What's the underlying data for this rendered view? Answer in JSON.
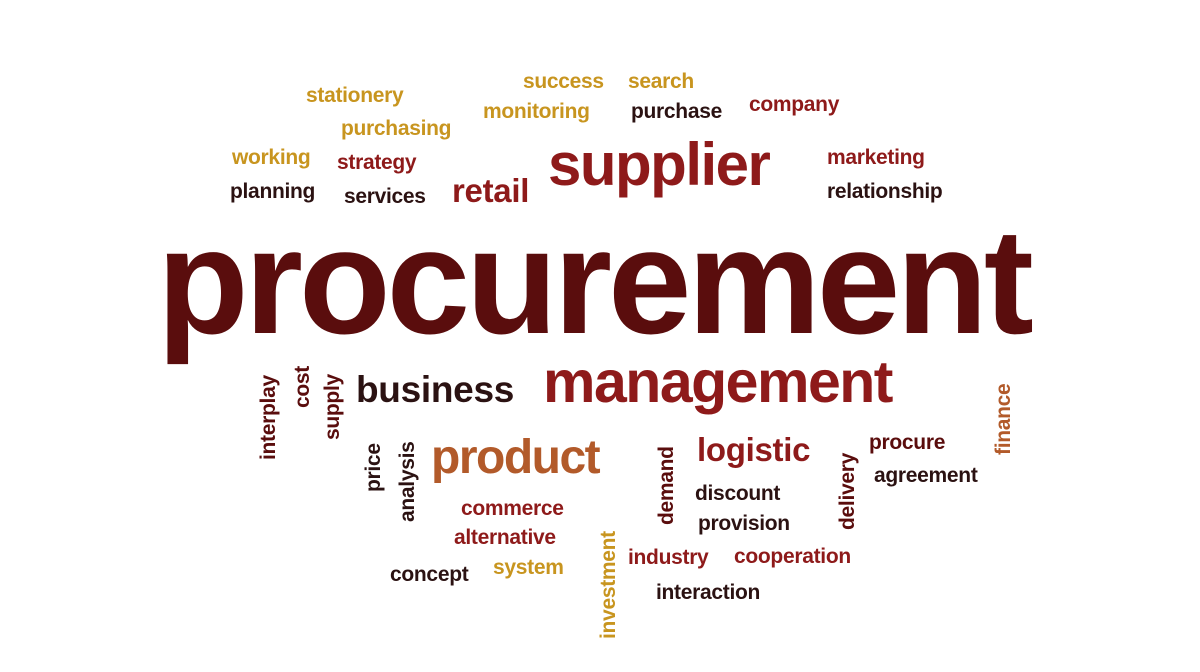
{
  "palette": {
    "gold": "#c8951f",
    "red": "#8e1a1a",
    "maroon": "#5a0d0d",
    "dark": "#2b1212",
    "orange": "#b25a2a"
  },
  "words": [
    {
      "id": "procurement",
      "text": "procurement",
      "color": "maroon",
      "orientation": "horizontal"
    },
    {
      "id": "supplier",
      "text": "supplier",
      "color": "red",
      "orientation": "horizontal"
    },
    {
      "id": "management",
      "text": "management",
      "color": "red",
      "orientation": "horizontal"
    },
    {
      "id": "product",
      "text": "product",
      "color": "orange",
      "orientation": "horizontal"
    },
    {
      "id": "business",
      "text": "business",
      "color": "dark",
      "orientation": "horizontal"
    },
    {
      "id": "logistic",
      "text": "logistic",
      "color": "red",
      "orientation": "horizontal"
    },
    {
      "id": "retail",
      "text": "retail",
      "color": "red",
      "orientation": "horizontal"
    },
    {
      "id": "success",
      "text": "success",
      "color": "gold",
      "orientation": "horizontal"
    },
    {
      "id": "search",
      "text": "search",
      "color": "gold",
      "orientation": "horizontal"
    },
    {
      "id": "stationery",
      "text": "stationery",
      "color": "gold",
      "orientation": "horizontal"
    },
    {
      "id": "monitoring",
      "text": "monitoring",
      "color": "gold",
      "orientation": "horizontal"
    },
    {
      "id": "purchase",
      "text": "purchase",
      "color": "dark",
      "orientation": "horizontal"
    },
    {
      "id": "company",
      "text": "company",
      "color": "red",
      "orientation": "horizontal"
    },
    {
      "id": "purchasing",
      "text": "purchasing",
      "color": "gold",
      "orientation": "horizontal"
    },
    {
      "id": "working",
      "text": "working",
      "color": "gold",
      "orientation": "horizontal"
    },
    {
      "id": "strategy",
      "text": "strategy",
      "color": "red",
      "orientation": "horizontal"
    },
    {
      "id": "marketing",
      "text": "marketing",
      "color": "red",
      "orientation": "horizontal"
    },
    {
      "id": "planning",
      "text": "planning",
      "color": "dark",
      "orientation": "horizontal"
    },
    {
      "id": "services",
      "text": "services",
      "color": "dark",
      "orientation": "horizontal"
    },
    {
      "id": "relationship",
      "text": "relationship",
      "color": "dark",
      "orientation": "horizontal"
    },
    {
      "id": "interplay",
      "text": "interplay",
      "color": "maroon",
      "orientation": "vertical"
    },
    {
      "id": "cost",
      "text": "cost",
      "color": "maroon",
      "orientation": "vertical"
    },
    {
      "id": "supply",
      "text": "supply",
      "color": "maroon",
      "orientation": "vertical"
    },
    {
      "id": "price",
      "text": "price",
      "color": "dark",
      "orientation": "vertical"
    },
    {
      "id": "analysis",
      "text": "analysis",
      "color": "dark",
      "orientation": "vertical"
    },
    {
      "id": "demand",
      "text": "demand",
      "color": "maroon",
      "orientation": "vertical"
    },
    {
      "id": "delivery",
      "text": "delivery",
      "color": "maroon",
      "orientation": "vertical"
    },
    {
      "id": "finance",
      "text": "finance",
      "color": "orange",
      "orientation": "vertical"
    },
    {
      "id": "investment",
      "text": "investment",
      "color": "gold",
      "orientation": "vertical"
    },
    {
      "id": "procure",
      "text": "procure",
      "color": "maroon",
      "orientation": "horizontal"
    },
    {
      "id": "agreement",
      "text": "agreement",
      "color": "dark",
      "orientation": "horizontal"
    },
    {
      "id": "discount",
      "text": "discount",
      "color": "dark",
      "orientation": "horizontal"
    },
    {
      "id": "provision",
      "text": "provision",
      "color": "dark",
      "orientation": "horizontal"
    },
    {
      "id": "commerce",
      "text": "commerce",
      "color": "red",
      "orientation": "horizontal"
    },
    {
      "id": "alternative",
      "text": "alternative",
      "color": "red",
      "orientation": "horizontal"
    },
    {
      "id": "concept",
      "text": "concept",
      "color": "dark",
      "orientation": "horizontal"
    },
    {
      "id": "system",
      "text": "system",
      "color": "gold",
      "orientation": "horizontal"
    },
    {
      "id": "industry",
      "text": "industry",
      "color": "red",
      "orientation": "horizontal"
    },
    {
      "id": "cooperation",
      "text": "cooperation",
      "color": "red",
      "orientation": "horizontal"
    },
    {
      "id": "interaction",
      "text": "interaction",
      "color": "dark",
      "orientation": "horizontal"
    }
  ]
}
